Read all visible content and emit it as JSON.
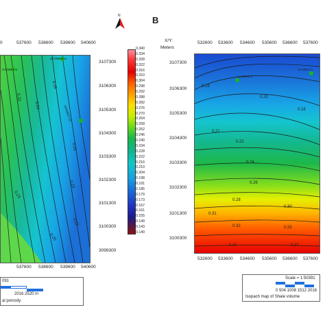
{
  "north_label": "N",
  "panel_b_letter": "B",
  "left_map": {
    "x_ticks": [
      "537600",
      "538600",
      "539600",
      "540600"
    ],
    "x_ticks_partial": [
      "0"
    ],
    "x_ticks_bottom": [
      "537600",
      "538600",
      "539600",
      "540600"
    ],
    "y_ticks": [
      "3107300",
      "3106300",
      "3105300",
      "3104300",
      "3103300",
      "3102300",
      "3101300",
      "3100300",
      "3099300"
    ],
    "wells": [
      "GAOB#1-5",
      "GAOB#2-14",
      "GAOB#2-12"
    ],
    "contours": [
      "0.18",
      "0.19",
      "0.20",
      "0.21",
      "0.22",
      "0.23",
      "0.24",
      "0.20",
      "0.22",
      "0.21",
      "0.23",
      "0.25",
      "0.24"
    ],
    "scale_fragment": "091",
    "scale_numbers": "2016  2520 m",
    "caption_fragment": "al porosity"
  },
  "right_map": {
    "axis_title": "X/Y:",
    "axis_unit": "Meters",
    "x_ticks": [
      "532600",
      "533600",
      "534600",
      "535600",
      "536600",
      "537600"
    ],
    "x_ticks_bottom": [
      "532600",
      "533600",
      "534600",
      "535600",
      "536600",
      "537600"
    ],
    "y_ticks": [
      "3107300",
      "3106300",
      "3105300",
      "3104300",
      "3103300",
      "3102300",
      "3101300",
      "3100300"
    ],
    "wells": [
      "GAOB#1-0",
      "GAOB#1-3"
    ],
    "contours": [
      "0.18",
      "0.19",
      "0.20",
      "0.21",
      "0.22",
      "0.24",
      "0.26",
      "0.28",
      "0.30",
      "0.31",
      "0.32",
      "0.33",
      "0.34",
      "0.19",
      "0.20",
      "0.25",
      "0.28",
      "0.30",
      "0.32",
      "0.34",
      "0.27",
      "0.31",
      "0.34"
    ],
    "scale_label": "Scale = 1:50391",
    "scale_numbers": "0   504  1008  1512  2016",
    "caption": "Isopach map of Shale volume"
  },
  "colorbar": {
    "labels": [
      "0.340",
      "0.334",
      "0.328",
      "0.322",
      "0.316",
      "0.310",
      "0.304",
      "0.298",
      "0.292",
      "0.288",
      "0.282",
      "0.276",
      "0.270",
      "0.264",
      "0.258",
      "0.252",
      "0.246",
      "0.240",
      "0.234",
      "0.228",
      "0.222",
      "0.216",
      "0.210",
      "0.204",
      "0.198",
      "0.191",
      "0.185",
      "0.179",
      "0.173",
      "0.167",
      "0.161",
      "0.155",
      "0.149",
      "0.143",
      "0.140"
    ],
    "colors": [
      "#ff8a9a",
      "#ff3d3d",
      "#e60000",
      "#ff5a00",
      "#ff9a00",
      "#ffd000",
      "#fff200",
      "#d8f000",
      "#9ee800",
      "#3fcf2e",
      "#16b84a",
      "#12b38a",
      "#12c7c7",
      "#15a7e3",
      "#1a7cd8",
      "#1d4fcf",
      "#2020b8",
      "#1a1a8a",
      "#6b1f1f"
    ]
  }
}
